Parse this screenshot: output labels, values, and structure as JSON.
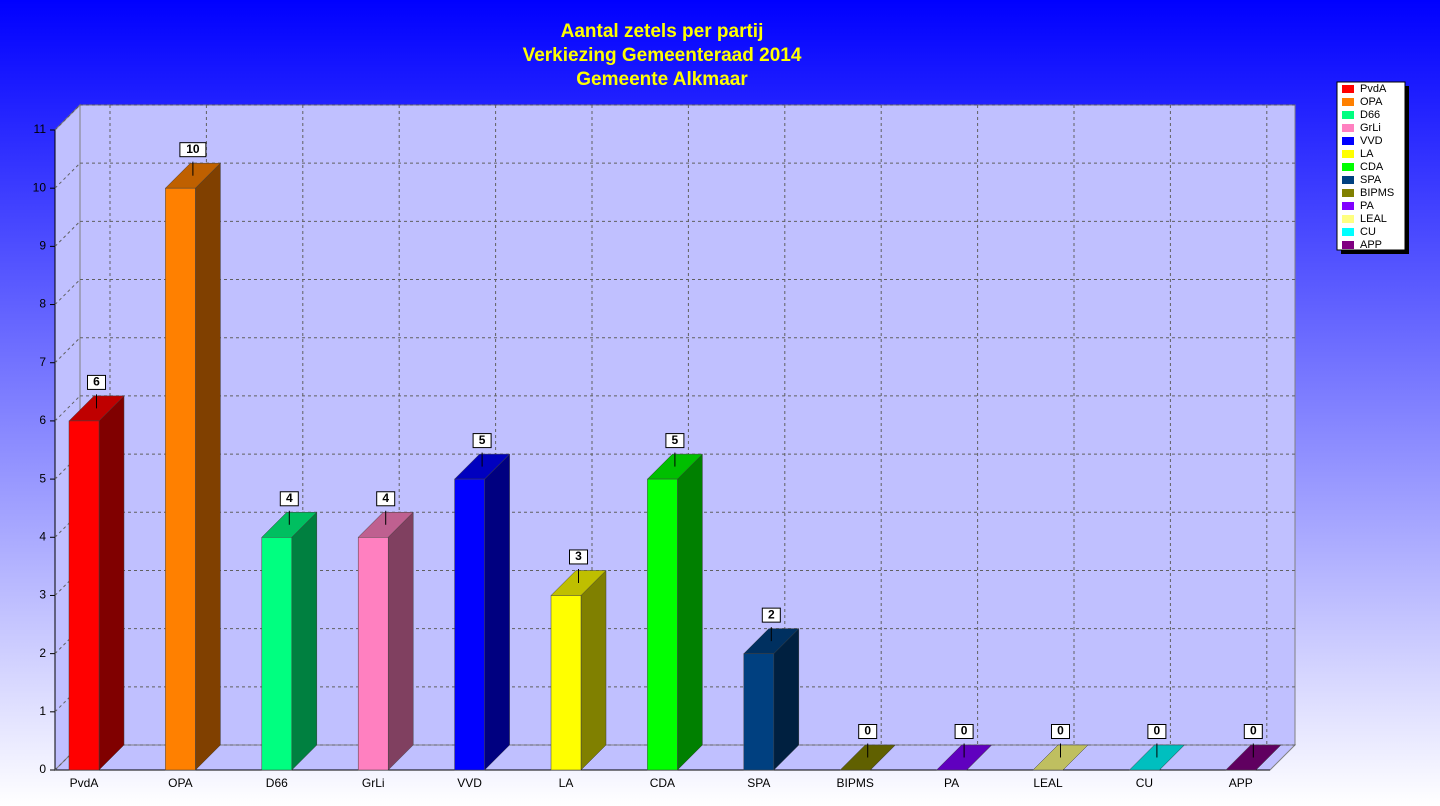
{
  "chart_data": {
    "type": "bar3d",
    "title": [
      "Aantal zetels per partij",
      "Verkiezing Gemeenteraad 2014",
      "Gemeente Alkmaar"
    ],
    "categories": [
      "PvdA",
      "OPA",
      "D66",
      "GrLi",
      "VVD",
      "LA",
      "CDA",
      "SPA",
      "BIPMS",
      "PA",
      "LEAL",
      "CU",
      "APP"
    ],
    "values": [
      6,
      10,
      4,
      4,
      5,
      3,
      5,
      2,
      0,
      0,
      0,
      0,
      0
    ],
    "colors": [
      "#ff0000",
      "#ff8000",
      "#00ff80",
      "#ff80c0",
      "#0000ff",
      "#ffff00",
      "#00ff00",
      "#004080",
      "#808000",
      "#8000ff",
      "#ffff80",
      "#00ffff",
      "#800080"
    ],
    "ylim": [
      0,
      11
    ],
    "yticks": [
      0,
      1,
      2,
      3,
      4,
      5,
      6,
      7,
      8,
      9,
      10,
      11
    ],
    "grid": true,
    "legend": "right"
  }
}
